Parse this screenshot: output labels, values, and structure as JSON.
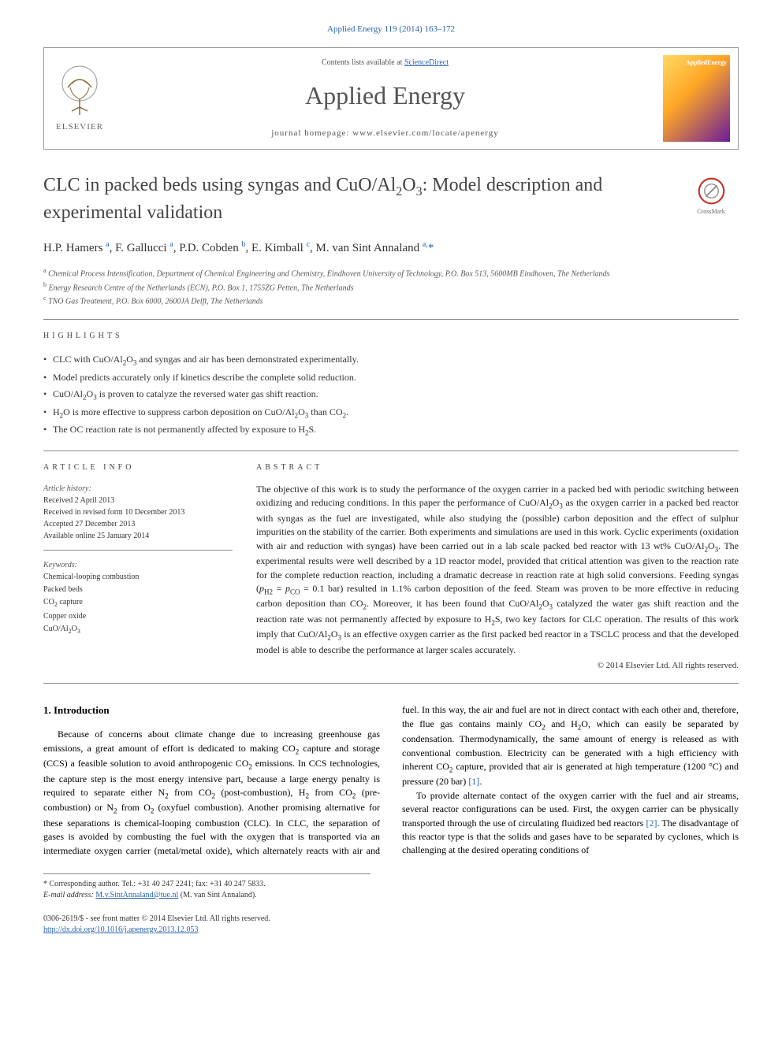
{
  "journal_ref": "Applied Energy 119 (2014) 163–172",
  "header": {
    "contents_text": "Contents lists available at ",
    "contents_link": "ScienceDirect",
    "journal_name": "Applied Energy",
    "homepage_label": "journal homepage: www.elsevier.com/locate/apenergy",
    "publisher_name": "ELSEVIER",
    "cover_label": "AppliedEnergy"
  },
  "crossmark_label": "CrossMark",
  "article": {
    "title_pre": "CLC in packed beds using syngas and CuO/Al",
    "title_sub1": "2",
    "title_mid": "O",
    "title_sub2": "3",
    "title_post": ": Model description and experimental validation",
    "authors_html": "H.P. Hamers <sup>a</sup>, F. Gallucci <sup>a</sup>, P.D. Cobden <sup>b</sup>, E. Kimball <sup>c</sup>, M. van Sint Annaland <sup>a,</sup><span class='ast'>*</span>",
    "affiliations": [
      {
        "sup": "a",
        "text": "Chemical Process Intensification, Department of Chemical Engineering and Chemistry, Eindhoven University of Technology, P.O. Box 513, 5600MB Eindhoven, The Netherlands"
      },
      {
        "sup": "b",
        "text": "Energy Research Centre of the Netherlands (ECN), P.O. Box 1, 1755ZG Petten, The Netherlands"
      },
      {
        "sup": "c",
        "text": "TNO Gas Treatment, P.O. Box 6000, 2600JA Delft, The Netherlands"
      }
    ]
  },
  "highlights_header": "HIGHLIGHTS",
  "highlights": [
    "CLC with CuO/Al<sub>2</sub>O<sub>3</sub> and syngas and air has been demonstrated experimentally.",
    "Model predicts accurately only if kinetics describe the complete solid reduction.",
    "CuO/Al<sub>2</sub>O<sub>3</sub> is proven to catalyze the reversed water gas shift reaction.",
    "H<sub>2</sub>O is more effective to suppress carbon deposition on CuO/Al<sub>2</sub>O<sub>3</sub> than CO<sub>2</sub>.",
    "The OC reaction rate is not permanently affected by exposure to H<sub>2</sub>S."
  ],
  "article_info_header": "ARTICLE INFO",
  "article_history": {
    "label": "Article history:",
    "received": "Received 2 April 2013",
    "revised": "Received in revised form 10 December 2013",
    "accepted": "Accepted 27 December 2013",
    "online": "Available online 25 January 2014"
  },
  "keywords_label": "Keywords:",
  "keywords": [
    "Chemical-looping combustion",
    "Packed beds",
    "CO<sub>2</sub> capture",
    "Copper oxide",
    "CuO/Al<sub>2</sub>O<sub>3</sub>"
  ],
  "abstract_header": "ABSTRACT",
  "abstract_text": "The objective of this work is to study the performance of the oxygen carrier in a packed bed with periodic switching between oxidizing and reducing conditions. In this paper the performance of CuO/Al<sub>2</sub>O<sub>3</sub> as the oxygen carrier in a packed bed reactor with syngas as the fuel are investigated, while also studying the (possible) carbon deposition and the effect of sulphur impurities on the stability of the carrier. Both experiments and simulations are used in this work. Cyclic experiments (oxidation with air and reduction with syngas) have been carried out in a lab scale packed bed reactor with 13 wt% CuO/Al<sub>2</sub>O<sub>3</sub>. The experimental results were well described by a 1D reactor model, provided that critical attention was given to the reaction rate for the complete reduction reaction, including a dramatic decrease in reaction rate at high solid conversions. Feeding syngas (<i>p</i><sub>H2</sub> = <i>p</i><sub>CO</sub> = 0.1 bar) resulted in 1.1% carbon deposition of the feed. Steam was proven to be more effective in reducing carbon deposition than CO<sub>2</sub>. Moreover, it has been found that CuO/Al<sub>2</sub>O<sub>3</sub> catalyzed the water gas shift reaction and the reaction rate was not permanently affected by exposure to H<sub>2</sub>S, two key factors for CLC operation. The results of this work imply that CuO/Al<sub>2</sub>O<sub>3</sub> is an effective oxygen carrier as the first packed bed reactor in a TSCLC process and that the developed model is able to describe the performance at larger scales accurately.",
  "copyright": "© 2014 Elsevier Ltd. All rights reserved.",
  "intro_heading": "1. Introduction",
  "intro_p1": "Because of concerns about climate change due to increasing greenhouse gas emissions, a great amount of effort is dedicated to making CO<sub>2</sub> capture and storage (CCS) a feasible solution to avoid anthropogenic CO<sub>2</sub> emissions. In CCS technologies, the capture step is the most energy intensive part, because a large energy penalty is required to separate either N<sub>2</sub> from CO<sub>2</sub> (post-combustion), H<sub>2</sub> from CO<sub>2</sub> (pre-combustion) or N<sub>2</sub> from O<sub>2</sub> (oxyfuel combustion). Another promising alternative for these separations is chemical-looping combustion (CLC). In CLC, the separation of gases is avoided by combusting the fuel with the oxygen that is transported via an intermediate oxygen carrier (metal/metal oxide), which alternately reacts with air and fuel. In this way, the air and fuel are not in direct contact with each other and, therefore, the flue gas contains mainly CO<sub>2</sub> and H<sub>2</sub>O, which can easily be separated by condensation. Thermodynamically, the same amount of energy is released as with conventional combustion. Electricity can be generated with a high efficiency with inherent CO<sub>2</sub> capture, provided that air is generated at high temperature (1200 °C) and pressure (20 bar) <a class='ref' href='#'>[1]</a>.",
  "intro_p2": "To provide alternate contact of the oxygen carrier with the fuel and air streams, several reactor configurations can be used. First, the oxygen carrier can be physically transported through the use of circulating fluidized bed reactors <a class='ref' href='#'>[2]</a>. The disadvantage of this reactor type is that the solids and gases have to be separated by cyclones, which is challenging at the desired operating conditions of",
  "footnote": {
    "corr": "* Corresponding author. Tel.: +31 40 247 2241; fax: +31 40 247 5833.",
    "email_label": "E-mail address: ",
    "email": "M.v.SintAnnaland@tue.nl",
    "email_suffix": " (M. van Sint Annaland)."
  },
  "bottom": {
    "line1": "0306-2619/$ - see front matter © 2014 Elsevier Ltd. All rights reserved.",
    "doi": "http://dx.doi.org/10.1016/j.apenergy.2013.12.053"
  },
  "colors": {
    "link": "#2962b0",
    "text": "#000000",
    "muted": "#555555",
    "border": "#888888",
    "cover_gradient_start": "#ffd966",
    "cover_gradient_mid": "#ffa726",
    "cover_gradient_end": "#6a1b9a"
  }
}
